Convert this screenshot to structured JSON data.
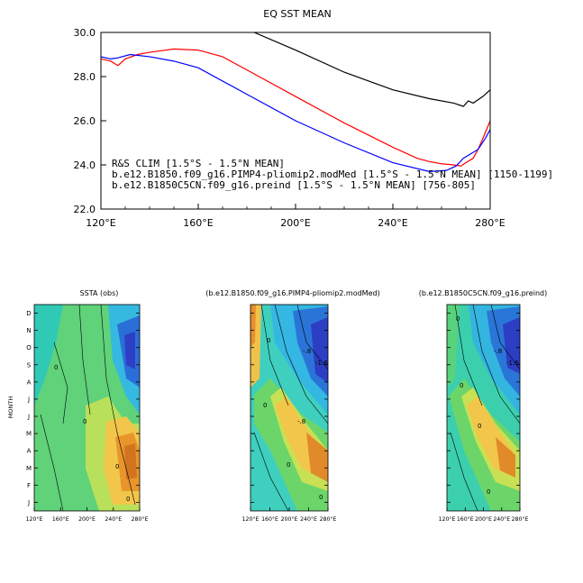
{
  "chart_data": [
    {
      "type": "line",
      "title": "EQ SST MEAN",
      "xlabel": "",
      "ylabel": "",
      "xlim": [
        120,
        280
      ],
      "ylim": [
        22,
        30
      ],
      "x_tick_labels": [
        "120°E",
        "160°E",
        "200°E",
        "240°E",
        "280°E"
      ],
      "y_tick_labels": [
        "22.0",
        "24.0",
        "26.0",
        "28.0",
        "30.0"
      ],
      "x_ticks": [
        120,
        160,
        200,
        240,
        280
      ],
      "y_ticks": [
        22,
        24,
        26,
        28,
        30
      ],
      "series": [
        {
          "name": "R&S CLIM [1.5°S - 1.5°N MEAN]",
          "color": "#ff0000",
          "x": [
            120,
            124,
            127,
            130,
            135,
            140,
            150,
            160,
            170,
            180,
            200,
            220,
            240,
            250,
            255,
            260,
            265,
            268,
            270,
            273,
            275,
            277,
            280
          ],
          "y": [
            28.8,
            28.7,
            28.5,
            28.8,
            29.0,
            29.1,
            29.25,
            29.2,
            28.9,
            28.3,
            27.1,
            25.9,
            24.8,
            24.3,
            24.15,
            24.05,
            24.0,
            23.95,
            24.1,
            24.3,
            24.7,
            25.2,
            26.0
          ]
        },
        {
          "name": "b.e12.B1850.f09_g16.PIMP4-pliomip2.modMed [1.5°S - 1.5°N MEAN] [1150-1199]",
          "color": "#000000",
          "x": [
            183,
            200,
            220,
            240,
            255,
            265,
            269,
            271,
            273,
            275,
            277,
            280
          ],
          "y": [
            30.0,
            29.2,
            28.2,
            27.4,
            27.0,
            26.8,
            26.65,
            26.9,
            26.8,
            26.95,
            27.1,
            27.4
          ]
        },
        {
          "name": "b.e12.B1850C5CN.f09_g16.preind [1.5°S - 1.5°N MEAN] [756-805]",
          "color": "#0000ff",
          "x": [
            120,
            124,
            127,
            132,
            140,
            150,
            160,
            180,
            200,
            220,
            240,
            255,
            262,
            266,
            269,
            272,
            275,
            278,
            280
          ],
          "y": [
            28.9,
            28.8,
            28.85,
            29.0,
            28.9,
            28.7,
            28.4,
            27.2,
            26.0,
            25.0,
            24.1,
            23.7,
            23.75,
            23.95,
            24.3,
            24.5,
            24.7,
            25.2,
            25.6
          ]
        }
      ],
      "legend": "inside-bottom-left"
    },
    {
      "type": "heatmap",
      "title": "SSTA (obs)",
      "ylabel": "MONTH",
      "x_tick_labels": [
        "120°E",
        "160°E",
        "200°E",
        "240°E",
        "280°E"
      ],
      "y_tick_labels": [
        "J",
        "F",
        "M",
        "A",
        "M",
        "J",
        "J",
        "A",
        "S",
        "O",
        "N",
        "D"
      ],
      "contour_labels": [
        "0",
        "0",
        "0",
        "0"
      ]
    },
    {
      "type": "heatmap",
      "title": "(b.e12.B1850.f09_g16.PIMP4-pliomip2.modMed)",
      "ylabel": "",
      "x_tick_labels": [
        "120°E",
        "160°E",
        "200°E",
        "240°E",
        "280°E"
      ],
      "y_tick_labels": [],
      "contour_labels": [
        "0",
        "0",
        "-.8",
        "-1.6",
        "-.8",
        "0",
        "0"
      ]
    },
    {
      "type": "heatmap",
      "title": "(b.e12.B1850C5CN.f09_g16.preind)",
      "ylabel": "",
      "x_tick_labels": [
        "120°E",
        "160°E",
        "200°E",
        "240°E",
        "280°E"
      ],
      "y_tick_labels": [],
      "contour_labels": [
        "0",
        "-.8",
        "-1.6",
        "0",
        "0",
        "0"
      ]
    }
  ]
}
